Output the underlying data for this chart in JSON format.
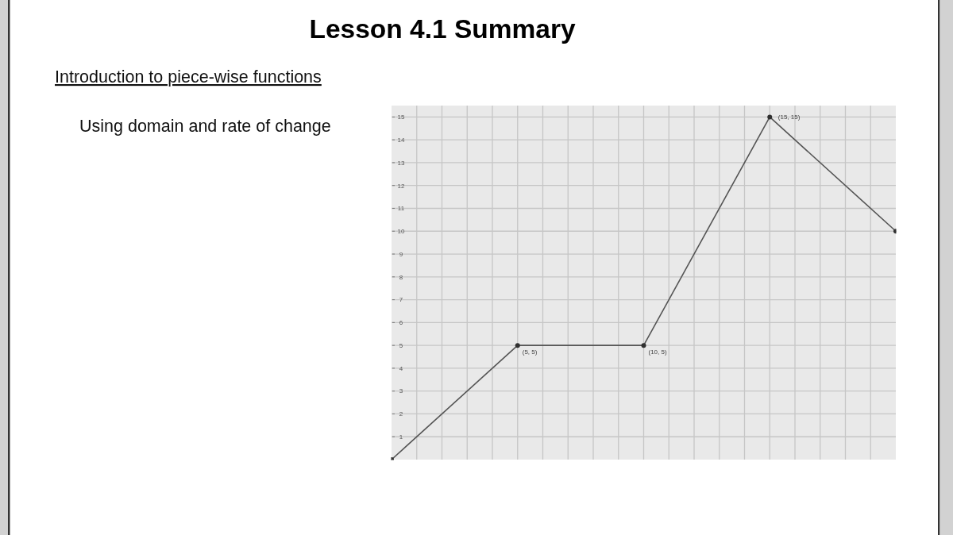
{
  "chart_data": {
    "type": "line",
    "title": "Lesson 4.1 Summary",
    "subtitle": "Introduction to piece-wise functions",
    "annotations": [
      "Using domain and rate of change"
    ],
    "categories": [
      null,
      null,
      null,
      null,
      null
    ],
    "values": [
      0,
      5,
      5,
      15,
      10
    ],
    "value_labels": [
      null,
      "(5, 5)",
      "(10, 5)",
      "(15, 15)",
      null
    ],
    "color": "#555555",
    "ylim": [
      0,
      15.5
    ],
    "yticks": [
      1,
      2,
      3,
      4,
      5,
      6,
      7,
      8,
      9,
      10,
      11,
      12,
      13,
      14,
      15
    ],
    "grid": true,
    "tick_labels": "y",
    "marker": "circle",
    "line_style": "solid"
  }
}
